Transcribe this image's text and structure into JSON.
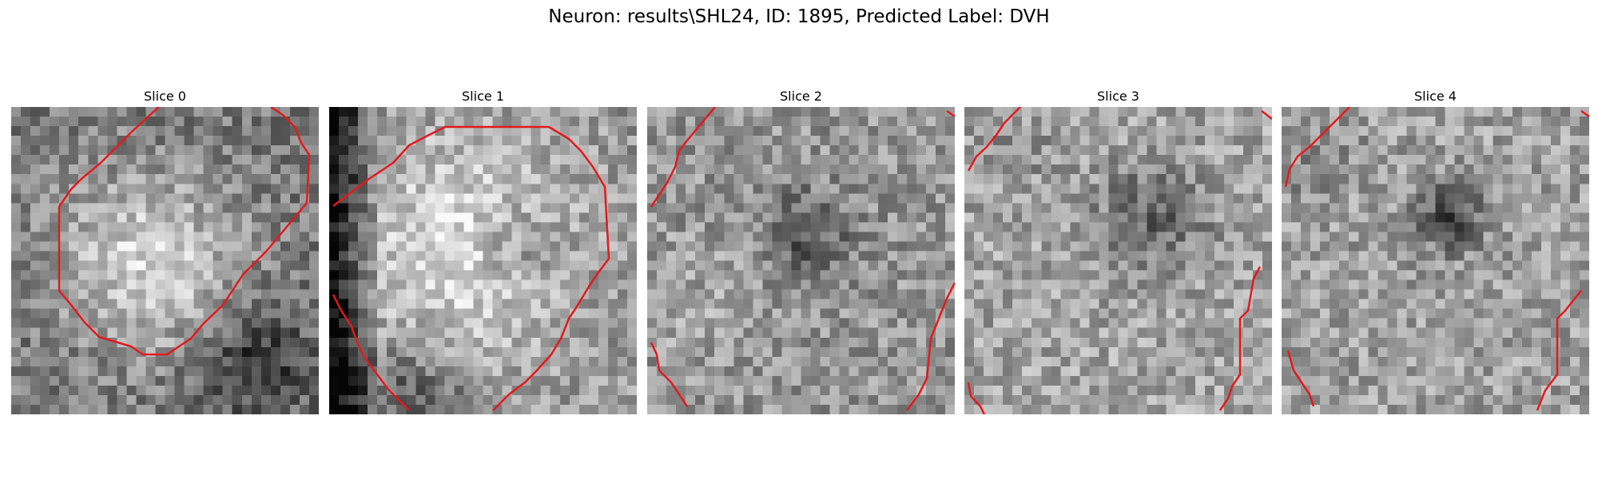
{
  "figure": {
    "title": "Neuron: results\\SHL24, ID: 1895, Predicted Label: DVH"
  },
  "overlay_color": "#e31a1c",
  "slices": [
    {
      "label": "Slice 0"
    },
    {
      "label": "Slice 1"
    },
    {
      "label": "Slice 2"
    },
    {
      "label": "Slice 3"
    },
    {
      "label": "Slice 4"
    }
  ]
}
